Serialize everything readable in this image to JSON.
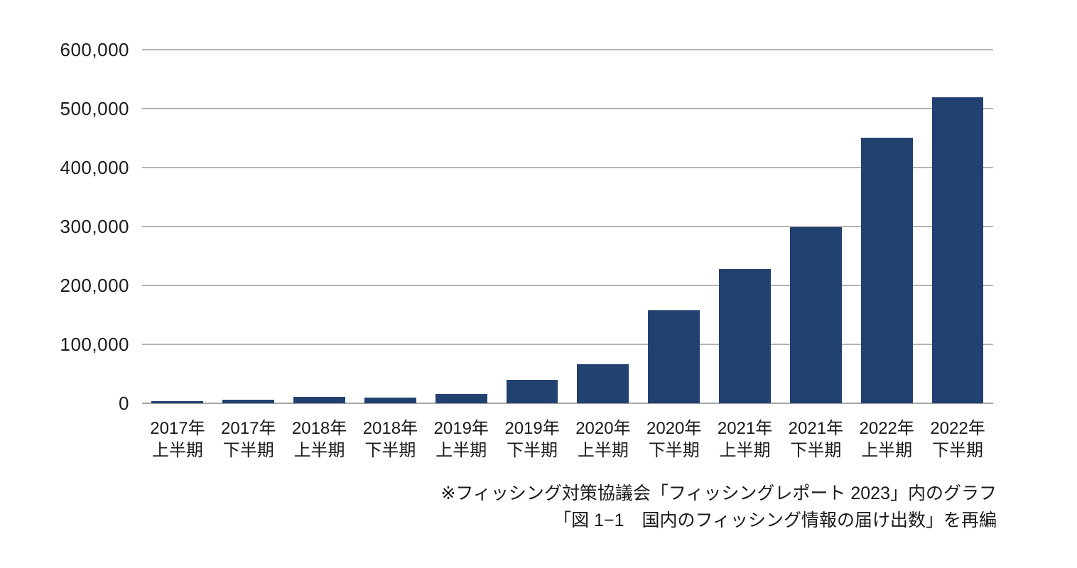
{
  "chart_data": {
    "type": "bar",
    "title": "",
    "xlabel": "",
    "ylabel": "",
    "categories": [
      "2017年\n上半期",
      "2017年\n下半期",
      "2018年\n上半期",
      "2018年\n下半期",
      "2019年\n上半期",
      "2019年\n下半期",
      "2020年\n上半期",
      "2020年\n下半期",
      "2021年\n上半期",
      "2021年\n下半期",
      "2022年\n上半期",
      "2022年\n下半期"
    ],
    "values": [
      4134,
      5678,
      10686,
      9274,
      16091,
      39696,
      66329,
      158347,
      227943,
      298561,
      450119,
      518713
    ],
    "ylim": [
      0,
      600000
    ],
    "ytick_step": 100000,
    "ytick_labels": [
      "0",
      "100,000",
      "200,000",
      "300,000",
      "400,000",
      "500,000",
      "600,000"
    ],
    "grid": true,
    "legend": "none",
    "bar_color": "#214170"
  },
  "caption": {
    "line1": "※フィッシング対策協議会「フィッシングレポート 2023」内のグラフ",
    "line2": "「図 1−1　国内のフィッシング情報の届け出数」を再編"
  },
  "colors": {
    "bar": "#214170",
    "gridline": "#b3b3b3",
    "axis_line": "#a6a6a6",
    "text": "#1a1a1a",
    "background": "#ffffff"
  }
}
